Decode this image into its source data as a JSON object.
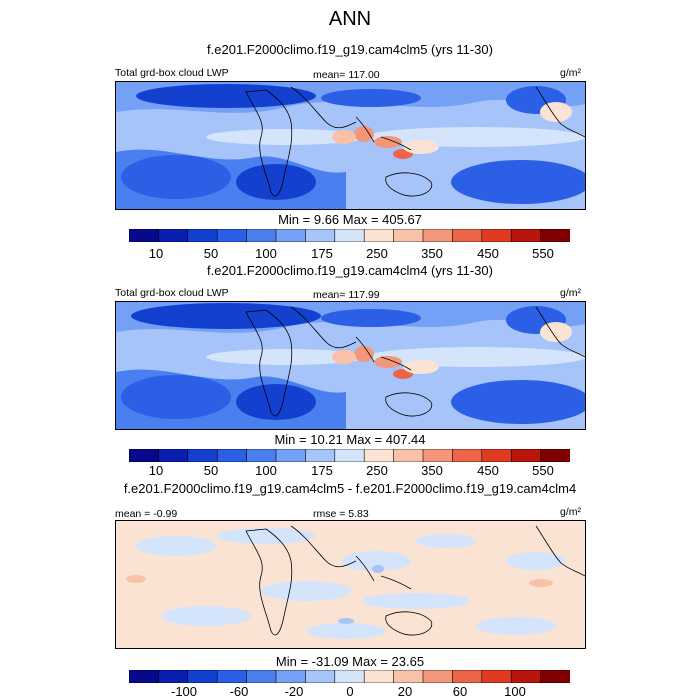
{
  "title": "ANN",
  "panels": [
    {
      "case_title": "f.e201.F2000climo.f19_g19.cam4clm5 (yrs 11-30)",
      "left_label": "Total grd-box cloud LWP",
      "center_label": "mean= 117.00",
      "units": "g/m²",
      "minmax": "Min =   9.66 Max = 405.67"
    },
    {
      "case_title": "f.e201.F2000climo.f19_g19.cam4clm4 (yrs 11-30)",
      "left_label": "Total grd-box cloud LWP",
      "center_label": "mean= 117.99",
      "units": "g/m²",
      "minmax": "Min =  10.21 Max = 407.44"
    },
    {
      "case_title": "f.e201.F2000climo.f19_g19.cam4clm5 - f.e201.F2000climo.f19_g19.cam4clm4",
      "left_label": "mean =  -0.99",
      "center_label": "rmse =   5.83",
      "units": "g/m²",
      "minmax": "Min = -31.09 Max =  23.65"
    }
  ],
  "colorbars": {
    "abs": {
      "colors": [
        "#08088c",
        "#0a1fb0",
        "#1440d0",
        "#2b5fe6",
        "#4a7ff0",
        "#74a0f5",
        "#a6c4f9",
        "#d4e4fb",
        "#fbe3d4",
        "#f9c2a8",
        "#f4967a",
        "#ec6548",
        "#e03a22",
        "#b8160c",
        "#800000"
      ],
      "labels": [
        "10",
        "50",
        "100",
        "175",
        "250",
        "350",
        "450",
        "550"
      ]
    },
    "diff": {
      "colors": [
        "#08088c",
        "#0a1fb0",
        "#1440d0",
        "#2b5fe6",
        "#4a7ff0",
        "#74a0f5",
        "#a6c4f9",
        "#d4e4fb",
        "#fbe3d4",
        "#f9c2a8",
        "#f4967a",
        "#ec6548",
        "#e03a22",
        "#b8160c",
        "#800000"
      ],
      "labels": [
        "-100",
        "-60",
        "-20",
        "0",
        "20",
        "60",
        "100"
      ]
    }
  }
}
